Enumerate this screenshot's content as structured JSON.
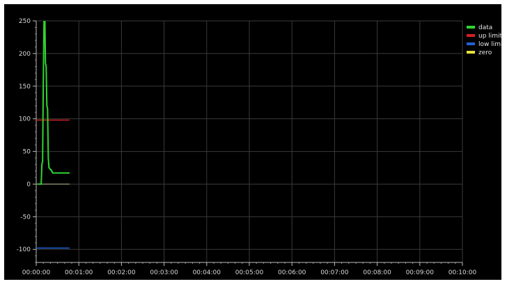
{
  "chart_data": {
    "type": "line",
    "title": "",
    "xlabel": "",
    "ylabel": "",
    "xlim": [
      0,
      600
    ],
    "ylim": [
      -120,
      250
    ],
    "grid": true,
    "legend_position": "top-right",
    "x_ticks": [
      "00:00:00",
      "00:01:00",
      "00:02:00",
      "00:03:00",
      "00:04:00",
      "00:05:00",
      "00:06:00",
      "00:07:00",
      "00:08:00",
      "00:09:00",
      "00:10:00"
    ],
    "x_tick_values": [
      0,
      60,
      120,
      180,
      240,
      300,
      360,
      420,
      480,
      540,
      600
    ],
    "y_ticks": [
      "250",
      "200",
      "150",
      "100",
      "50",
      "0",
      "-50",
      "-100"
    ],
    "y_tick_values": [
      250,
      200,
      150,
      100,
      50,
      0,
      -50,
      -100
    ],
    "series": [
      {
        "name": "data",
        "color": "#2fd62f",
        "x": [
          2,
          7,
          8,
          9,
          10,
          11,
          12,
          13,
          14,
          15,
          16,
          17,
          18,
          19,
          20,
          21,
          22,
          23,
          24,
          25,
          28,
          30,
          32,
          47
        ],
        "y": [
          0,
          0,
          30,
          35,
          160,
          250,
          270,
          185,
          180,
          120,
          115,
          40,
          25,
          24,
          22,
          22,
          20,
          17,
          17,
          17,
          17,
          17,
          17,
          17
        ]
      },
      {
        "name": "up limit",
        "color": "#d42020",
        "x": [
          0,
          47
        ],
        "y": [
          98,
          98
        ]
      },
      {
        "name": "low limit",
        "color": "#2060d4",
        "x": [
          0,
          47
        ],
        "y": [
          -98,
          -98
        ]
      },
      {
        "name": "zero",
        "color": "#e8e03a",
        "x": [
          0,
          47
        ],
        "y": [
          0,
          0
        ]
      }
    ]
  }
}
